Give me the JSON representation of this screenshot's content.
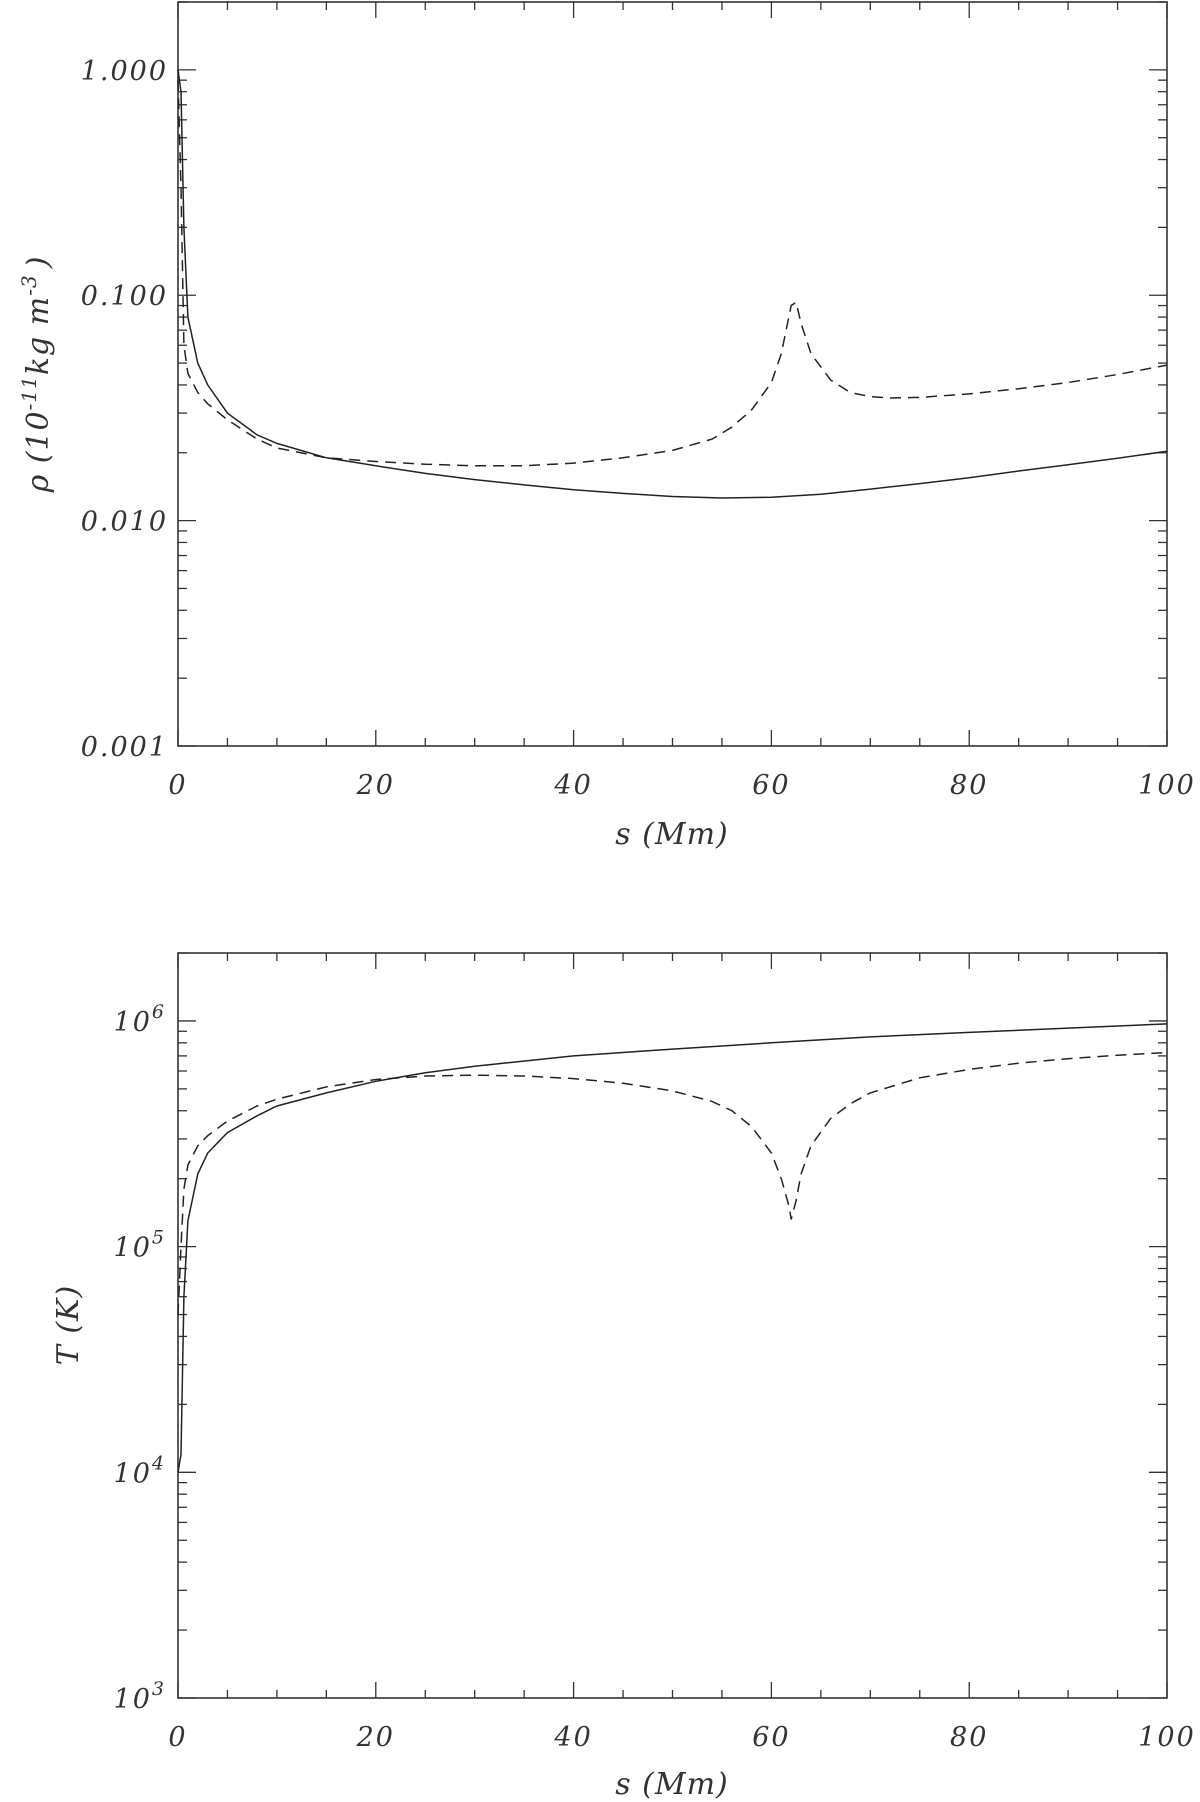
{
  "chart_data": [
    {
      "type": "line",
      "xlabel": "s (Mm)",
      "ylabel": "ρ (10^-11 kg m^-3)",
      "ylabel_parts": {
        "sym": "ρ (10",
        "exp1": "-11",
        "unit": "kg m",
        "exp2": "-3",
        "close": ")"
      },
      "yscale": "log",
      "xlim": [
        0,
        100
      ],
      "ylim": [
        0.001,
        2.0
      ],
      "x_ticks": [
        "0",
        "20",
        "40",
        "60",
        "80",
        "100"
      ],
      "y_ticks": [
        "0.001",
        "0.010",
        "0.100",
        "1.000"
      ],
      "y_tick_values": [
        0.001,
        0.01,
        0.1,
        1.0
      ],
      "series": [
        {
          "style": "solid",
          "x": [
            0,
            0.3,
            0.6,
            1,
            2,
            3,
            5,
            8,
            10,
            15,
            20,
            25,
            30,
            35,
            40,
            45,
            50,
            55,
            60,
            65,
            70,
            75,
            80,
            85,
            90,
            95,
            100
          ],
          "y": [
            1.0,
            0.8,
            0.2,
            0.08,
            0.05,
            0.04,
            0.03,
            0.024,
            0.022,
            0.019,
            0.0175,
            0.0162,
            0.0152,
            0.0144,
            0.0137,
            0.0132,
            0.0128,
            0.0126,
            0.0127,
            0.0131,
            0.0138,
            0.0146,
            0.0155,
            0.0166,
            0.0177,
            0.0189,
            0.0203
          ]
        },
        {
          "style": "dashed",
          "x": [
            0,
            0.3,
            0.6,
            1,
            2,
            3,
            5,
            8,
            10,
            15,
            20,
            25,
            30,
            35,
            40,
            45,
            50,
            54,
            56,
            58,
            60,
            61,
            62,
            62.5,
            63,
            64,
            66,
            68,
            70,
            72,
            75,
            80,
            85,
            90,
            95,
            100
          ],
          "y": [
            0.9,
            0.3,
            0.06,
            0.045,
            0.037,
            0.033,
            0.028,
            0.023,
            0.021,
            0.019,
            0.0183,
            0.0178,
            0.0175,
            0.0175,
            0.018,
            0.019,
            0.0205,
            0.023,
            0.026,
            0.031,
            0.041,
            0.055,
            0.09,
            0.093,
            0.075,
            0.055,
            0.042,
            0.037,
            0.0355,
            0.035,
            0.0352,
            0.0365,
            0.0385,
            0.041,
            0.0445,
            0.049
          ]
        }
      ]
    },
    {
      "type": "line",
      "xlabel": "s (Mm)",
      "ylabel": "T (K)",
      "yscale": "log",
      "xlim": [
        0,
        100
      ],
      "ylim": [
        1000,
        2000000
      ],
      "x_ticks": [
        "0",
        "20",
        "40",
        "60",
        "80",
        "100"
      ],
      "y_ticks": [
        "10",
        "10",
        "10",
        "10"
      ],
      "y_tick_exponents": [
        "3",
        "4",
        "5",
        "6"
      ],
      "y_tick_values": [
        1000,
        10000,
        100000,
        1000000
      ],
      "series": [
        {
          "style": "solid",
          "x": [
            0,
            0.3,
            0.6,
            1,
            2,
            3,
            5,
            8,
            10,
            15,
            20,
            25,
            30,
            40,
            50,
            60,
            70,
            80,
            90,
            100
          ],
          "y": [
            10000,
            12000,
            60000,
            130000,
            210000,
            260000,
            320000,
            380000,
            420000,
            480000,
            540000,
            590000,
            630000,
            700000,
            750000,
            800000,
            850000,
            890000,
            930000,
            970000
          ]
        },
        {
          "style": "dashed",
          "x": [
            0,
            0.3,
            0.6,
            1,
            2,
            3,
            5,
            8,
            10,
            15,
            20,
            25,
            30,
            35,
            40,
            45,
            50,
            54,
            56,
            58,
            60,
            61,
            61.8,
            62,
            62.5,
            63,
            64,
            66,
            68,
            70,
            75,
            80,
            85,
            90,
            95,
            100
          ],
          "y": [
            50000,
            100000,
            180000,
            230000,
            280000,
            310000,
            360000,
            420000,
            450000,
            510000,
            550000,
            570000,
            575000,
            570000,
            555000,
            530000,
            490000,
            440000,
            400000,
            340000,
            260000,
            200000,
            150000,
            132000,
            160000,
            210000,
            280000,
            370000,
            430000,
            480000,
            560000,
            610000,
            650000,
            680000,
            705000,
            725000
          ]
        }
      ]
    }
  ]
}
